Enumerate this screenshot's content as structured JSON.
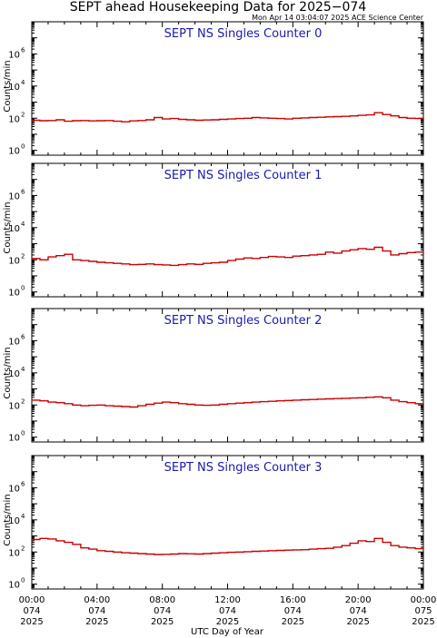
{
  "figure": {
    "title": "SEPT ahead Housekeeping Data for 2025−074",
    "timestamp": "Mon Apr 14 03:04:07 2025 ACE Science Center",
    "xlabel": "UTC Day of Year",
    "ylabel": "Counts/min",
    "line_color": "#cc0000",
    "title_color": "#1a1aaa",
    "x_ticks": [
      {
        "hour": 0,
        "time": "00:00",
        "day": "074",
        "year": "2025"
      },
      {
        "hour": 4,
        "time": "04:00",
        "day": "074",
        "year": "2025"
      },
      {
        "hour": 8,
        "time": "08:00",
        "day": "074",
        "year": "2025"
      },
      {
        "hour": 12,
        "time": "12:00",
        "day": "074",
        "year": "2025"
      },
      {
        "hour": 16,
        "time": "16:00",
        "day": "074",
        "year": "2025"
      },
      {
        "hour": 20,
        "time": "20:00",
        "day": "074",
        "year": "2025"
      },
      {
        "hour": 24,
        "time": "00:00",
        "day": "075",
        "year": "2025"
      }
    ],
    "y_ticks": [
      {
        "value": 1,
        "base": "10",
        "exp": "0"
      },
      {
        "value": 100,
        "base": "10",
        "exp": "2"
      },
      {
        "value": 10000,
        "base": "10",
        "exp": "4"
      },
      {
        "value": 1000000,
        "base": "10",
        "exp": "6"
      }
    ]
  },
  "chart_data": [
    {
      "type": "line",
      "title": "SEPT NS Singles Counter 0",
      "y_scale": "log",
      "ylim": [
        0.5,
        100000000
      ],
      "xlim": [
        0,
        24
      ],
      "x_hours": [
        0,
        0.5,
        1,
        1.5,
        2,
        2.5,
        3,
        3.5,
        4,
        4.5,
        5,
        5.5,
        6,
        6.5,
        7,
        7.5,
        8,
        8.5,
        9,
        9.5,
        10,
        10.5,
        11,
        11.5,
        12,
        12.5,
        13,
        13.5,
        14,
        14.5,
        15,
        15.5,
        16,
        16.5,
        17,
        17.5,
        18,
        18.5,
        19,
        19.5,
        20,
        20.5,
        21,
        21.5,
        22,
        22.5,
        23,
        23.5,
        24
      ],
      "values": [
        75,
        70,
        72,
        80,
        65,
        70,
        72,
        68,
        70,
        72,
        65,
        60,
        68,
        72,
        80,
        110,
        90,
        95,
        85,
        80,
        75,
        78,
        80,
        85,
        90,
        95,
        100,
        110,
        105,
        100,
        95,
        90,
        100,
        105,
        110,
        115,
        120,
        125,
        130,
        140,
        150,
        160,
        220,
        170,
        140,
        110,
        100,
        95,
        90
      ]
    },
    {
      "type": "line",
      "title": "SEPT NS Singles Counter 1",
      "y_scale": "log",
      "ylim": [
        0.5,
        100000000
      ],
      "xlim": [
        0,
        24
      ],
      "x_hours": [
        0,
        0.5,
        1,
        1.5,
        2,
        2.5,
        3,
        3.5,
        4,
        4.5,
        5,
        5.5,
        6,
        6.5,
        7,
        7.5,
        8,
        8.5,
        9,
        9.5,
        10,
        10.5,
        11,
        11.5,
        12,
        12.5,
        13,
        13.5,
        14,
        14.5,
        15,
        15.5,
        16,
        16.5,
        17,
        17.5,
        18,
        18.5,
        19,
        19.5,
        20,
        20.5,
        21,
        21.5,
        22,
        22.5,
        23,
        23.5,
        24
      ],
      "values": [
        120,
        100,
        150,
        180,
        220,
        100,
        90,
        80,
        70,
        65,
        60,
        55,
        50,
        52,
        55,
        50,
        48,
        45,
        50,
        55,
        52,
        60,
        65,
        70,
        90,
        110,
        130,
        120,
        140,
        160,
        150,
        140,
        170,
        180,
        200,
        220,
        300,
        260,
        350,
        420,
        500,
        450,
        600,
        350,
        200,
        240,
        280,
        300,
        260
      ]
    },
    {
      "type": "line",
      "title": "SEPT NS Singles Counter 2",
      "y_scale": "log",
      "ylim": [
        0.5,
        100000000
      ],
      "xlim": [
        0,
        24
      ],
      "x_hours": [
        0,
        0.5,
        1,
        1.5,
        2,
        2.5,
        3,
        3.5,
        4,
        4.5,
        5,
        5.5,
        6,
        6.5,
        7,
        7.5,
        8,
        8.5,
        9,
        9.5,
        10,
        10.5,
        11,
        11.5,
        12,
        12.5,
        13,
        13.5,
        14,
        14.5,
        15,
        15.5,
        16,
        16.5,
        17,
        17.5,
        18,
        18.5,
        19,
        19.5,
        20,
        20.5,
        21,
        21.5,
        22,
        22.5,
        23,
        23.5,
        24
      ],
      "values": [
        200,
        180,
        150,
        140,
        120,
        100,
        90,
        95,
        100,
        90,
        85,
        80,
        75,
        90,
        110,
        130,
        150,
        140,
        120,
        110,
        100,
        95,
        100,
        110,
        120,
        130,
        140,
        150,
        160,
        170,
        180,
        190,
        200,
        210,
        220,
        230,
        240,
        250,
        260,
        270,
        280,
        300,
        320,
        280,
        200,
        160,
        140,
        120,
        110
      ]
    },
    {
      "type": "line",
      "title": "SEPT NS Singles Counter 3",
      "y_scale": "log",
      "ylim": [
        0.5,
        100000000
      ],
      "xlim": [
        0,
        24
      ],
      "x_hours": [
        0,
        0.5,
        1,
        1.5,
        2,
        2.5,
        3,
        3.5,
        4,
        4.5,
        5,
        5.5,
        6,
        6.5,
        7,
        7.5,
        8,
        8.5,
        9,
        9.5,
        10,
        10.5,
        11,
        11.5,
        12,
        12.5,
        13,
        13.5,
        14,
        14.5,
        15,
        15.5,
        16,
        16.5,
        17,
        17.5,
        18,
        18.5,
        19,
        19.5,
        20,
        20.5,
        21,
        21.5,
        22,
        22.5,
        23,
        23.5,
        24
      ],
      "values": [
        600,
        700,
        650,
        500,
        400,
        300,
        180,
        150,
        120,
        110,
        100,
        90,
        85,
        80,
        75,
        70,
        72,
        75,
        80,
        78,
        75,
        80,
        85,
        90,
        95,
        100,
        105,
        110,
        115,
        120,
        125,
        130,
        135,
        140,
        150,
        160,
        170,
        200,
        250,
        350,
        500,
        450,
        700,
        400,
        250,
        200,
        180,
        160,
        150
      ]
    }
  ]
}
